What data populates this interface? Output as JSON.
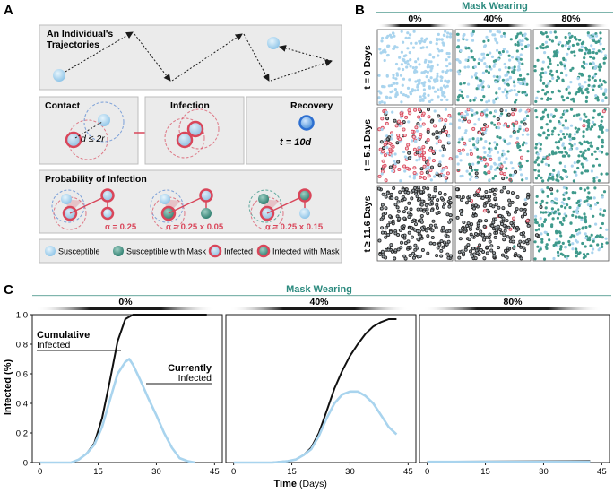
{
  "panelA": {
    "label": "A",
    "trajectories_title_line1": "An Individual's",
    "trajectories_title_line2": "Trajectories",
    "contact_title": "Contact",
    "infection_title": "Infection",
    "recovery_title": "Recovery",
    "contact_formula": "d ≤ 2r",
    "recovery_formula": "t = 10d",
    "probability_title": "Probability of Infection",
    "alpha_labels": [
      "α = 0.25",
      "α = 0.25 x 0.05",
      "α = 0.25 x 0.15"
    ],
    "legend": [
      "Susceptible",
      "Susceptible with Mask",
      "Infected",
      "Infected with Mask"
    ]
  },
  "panelB": {
    "label": "B",
    "header": "Mask Wearing",
    "columns": [
      "0%",
      "40%",
      "80%"
    ],
    "rows": [
      "t = 0 Days",
      "t = 5.1 Days",
      "t ≥ 11.6 Days"
    ]
  },
  "panelC": {
    "label": "C",
    "header": "Mask Wearing",
    "ylabel": "Infected (%)",
    "xlabel_bold": "Time",
    "xlabel_unit": "(Days)",
    "cumulative_line1": "Cumulative",
    "cumulative_line2": "Infected",
    "currently_line1": "Currently",
    "currently_line2": "Infected"
  },
  "colors": {
    "susceptible": "#a9d4ee",
    "masked": "#3f9a8c",
    "infected": "#d9465a",
    "dark": "#1a1a1a",
    "teal_header": "#2b8a7e"
  },
  "chart_data": {
    "type": "line",
    "facets": [
      "0%",
      "40%",
      "80%"
    ],
    "x_ticks": [
      0,
      15,
      30,
      45
    ],
    "y_ticks": [
      0,
      0.2,
      0.4,
      0.6,
      0.8,
      1.0
    ],
    "y_tick_labels": [
      "0",
      "0.2",
      "0.4",
      "0.6",
      "0.8",
      "1.0"
    ],
    "xlim": [
      -2,
      47
    ],
    "ylim": [
      0,
      1.0
    ],
    "series": [
      {
        "facet": "0%",
        "name": "Cumulative Infected",
        "x": [
          0,
          8,
          10,
          12,
          14,
          16,
          18,
          20,
          22,
          24,
          26,
          28,
          30,
          35,
          40,
          43
        ],
        "y": [
          0,
          0,
          0.02,
          0.06,
          0.13,
          0.3,
          0.55,
          0.82,
          0.97,
          1.0,
          1.0,
          1.0,
          1.0,
          1.0,
          1.0,
          1.0
        ]
      },
      {
        "facet": "0%",
        "name": "Currently Infected",
        "x": [
          0,
          8,
          10,
          12,
          14,
          16,
          18,
          20,
          22,
          23,
          24,
          26,
          28,
          30,
          32,
          34,
          36,
          38,
          40
        ],
        "y": [
          0,
          0,
          0.02,
          0.06,
          0.12,
          0.24,
          0.42,
          0.6,
          0.68,
          0.7,
          0.66,
          0.55,
          0.43,
          0.32,
          0.2,
          0.1,
          0.03,
          0.01,
          0
        ]
      },
      {
        "facet": "40%",
        "name": "Cumulative Infected",
        "x": [
          0,
          10,
          14,
          16,
          18,
          20,
          22,
          24,
          26,
          28,
          30,
          32,
          34,
          36,
          38,
          40,
          42
        ],
        "y": [
          0,
          0,
          0.01,
          0.02,
          0.05,
          0.1,
          0.2,
          0.35,
          0.5,
          0.62,
          0.72,
          0.8,
          0.87,
          0.92,
          0.95,
          0.97,
          0.97
        ]
      },
      {
        "facet": "40%",
        "name": "Currently Infected",
        "x": [
          0,
          10,
          14,
          16,
          18,
          20,
          22,
          24,
          26,
          28,
          30,
          32,
          34,
          36,
          38,
          40,
          42
        ],
        "y": [
          0,
          0,
          0.01,
          0.02,
          0.05,
          0.09,
          0.18,
          0.3,
          0.4,
          0.46,
          0.48,
          0.48,
          0.45,
          0.4,
          0.32,
          0.24,
          0.19
        ]
      },
      {
        "facet": "80%",
        "name": "Cumulative Infected",
        "x": [
          0,
          42
        ],
        "y": [
          0.005,
          0.01
        ]
      },
      {
        "facet": "80%",
        "name": "Currently Infected",
        "x": [
          0,
          42
        ],
        "y": [
          0.005,
          0.005
        ]
      }
    ]
  }
}
